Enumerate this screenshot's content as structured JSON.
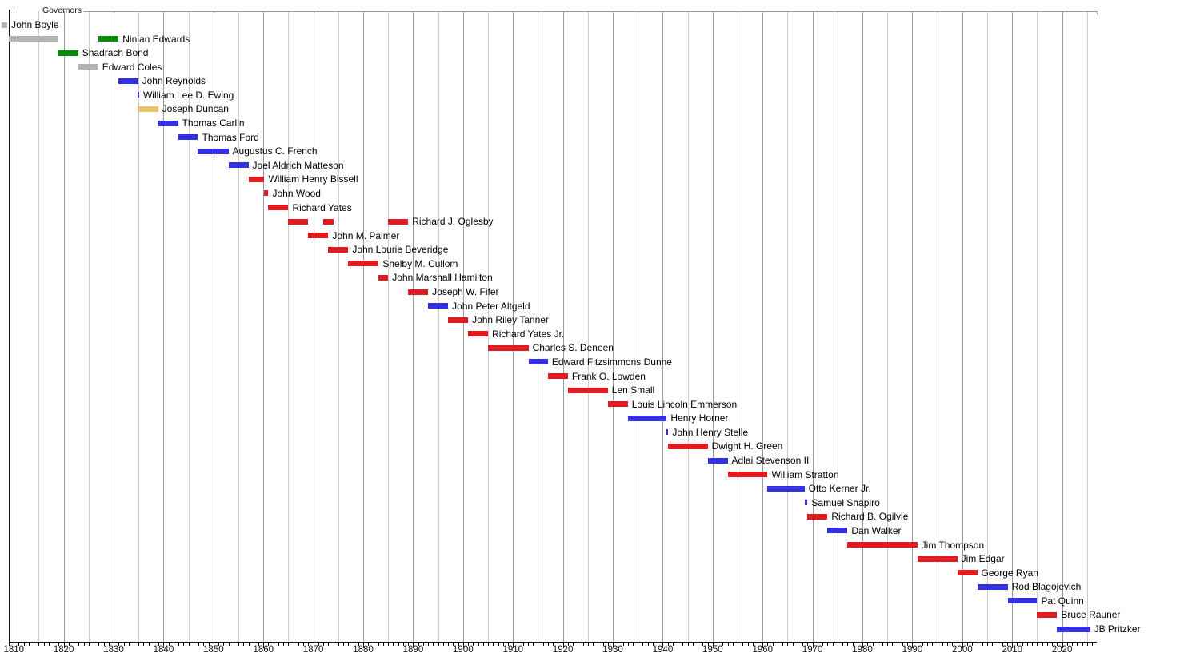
{
  "title": "Governors",
  "palette": {
    "red": "#e11b22",
    "blue": "#3430e2",
    "green": "#0a8a0a",
    "gray": "#b4b4b4",
    "gold": "#e9c567"
  },
  "style_colors": {
    "grid_major": "#9a9a9a",
    "grid_minor": "#cecece",
    "axis_color": "#111111",
    "background": "#ffffff",
    "label_color": "#000000"
  },
  "x_axis": {
    "tick_labels": [
      "1810",
      "1820",
      "1830",
      "1840",
      "1850",
      "1860",
      "1870",
      "1880",
      "1890",
      "1900",
      "1910",
      "1920",
      "1930",
      "1940",
      "1950",
      "1960",
      "1970",
      "1980",
      "1990",
      "2000",
      "2010",
      "2020"
    ]
  },
  "chart_data": {
    "type": "bar",
    "variant": "horizontal-timeline-gantt",
    "title": "Governors",
    "xlabel": "",
    "ylabel": "",
    "xlim": [
      1809,
      2027
    ],
    "grid": "on",
    "legend_position": "none",
    "series": [
      {
        "name": "John Boyle",
        "segments": [
          {
            "start": 1807.6,
            "end": 1808.7,
            "color": "gray"
          }
        ]
      },
      {
        "name": "Ninian Edwards",
        "segments": [
          {
            "start": 1809.0,
            "end": 1818.8,
            "color": "gray"
          },
          {
            "start": 1826.9,
            "end": 1831.0,
            "color": "green"
          }
        ]
      },
      {
        "name": "Shadrach Bond",
        "segments": [
          {
            "start": 1818.8,
            "end": 1822.9,
            "color": "green"
          }
        ]
      },
      {
        "name": "Edward Coles",
        "segments": [
          {
            "start": 1822.9,
            "end": 1826.9,
            "color": "gray"
          }
        ]
      },
      {
        "name": "John Reynolds",
        "segments": [
          {
            "start": 1830.9,
            "end": 1834.9,
            "color": "blue"
          }
        ]
      },
      {
        "name": "William Lee D. Ewing",
        "segments": [
          {
            "start": 1834.8,
            "end": 1835.0,
            "color": "blue"
          }
        ]
      },
      {
        "name": "Joseph Duncan",
        "segments": [
          {
            "start": 1834.9,
            "end": 1838.9,
            "color": "gold"
          }
        ]
      },
      {
        "name": "Thomas Carlin",
        "segments": [
          {
            "start": 1838.9,
            "end": 1842.9,
            "color": "blue"
          }
        ]
      },
      {
        "name": "Thomas Ford",
        "segments": [
          {
            "start": 1842.9,
            "end": 1846.9,
            "color": "blue"
          }
        ]
      },
      {
        "name": "Augustus C. French",
        "segments": [
          {
            "start": 1846.9,
            "end": 1853.0,
            "color": "blue"
          }
        ]
      },
      {
        "name": "Joel Aldrich Matteson",
        "segments": [
          {
            "start": 1853.0,
            "end": 1857.0,
            "color": "blue"
          }
        ]
      },
      {
        "name": "William Henry Bissell",
        "segments": [
          {
            "start": 1857.0,
            "end": 1860.2,
            "color": "red"
          }
        ]
      },
      {
        "name": "John Wood",
        "segments": [
          {
            "start": 1860.2,
            "end": 1861.0,
            "color": "red"
          }
        ]
      },
      {
        "name": "Richard Yates",
        "segments": [
          {
            "start": 1861.0,
            "end": 1865.0,
            "color": "red"
          }
        ]
      },
      {
        "name": "Richard J. Oglesby",
        "segments": [
          {
            "start": 1865.0,
            "end": 1869.0,
            "color": "red"
          },
          {
            "start": 1872.0,
            "end": 1874.0,
            "color": "red"
          },
          {
            "start": 1885.0,
            "end": 1889.0,
            "color": "red"
          }
        ]
      },
      {
        "name": "John M. Palmer",
        "segments": [
          {
            "start": 1869.0,
            "end": 1873.0,
            "color": "red"
          }
        ]
      },
      {
        "name": "John Lourie Beveridge",
        "segments": [
          {
            "start": 1873.0,
            "end": 1877.0,
            "color": "red"
          }
        ]
      },
      {
        "name": "Shelby M. Cullom",
        "segments": [
          {
            "start": 1877.0,
            "end": 1883.1,
            "color": "red"
          }
        ]
      },
      {
        "name": "John Marshall Hamilton",
        "segments": [
          {
            "start": 1883.1,
            "end": 1885.0,
            "color": "red"
          }
        ]
      },
      {
        "name": "Joseph W. Fifer",
        "segments": [
          {
            "start": 1889.0,
            "end": 1893.0,
            "color": "red"
          }
        ]
      },
      {
        "name": "John Peter Altgeld",
        "segments": [
          {
            "start": 1893.0,
            "end": 1897.0,
            "color": "blue"
          }
        ]
      },
      {
        "name": "John Riley Tanner",
        "segments": [
          {
            "start": 1897.0,
            "end": 1901.0,
            "color": "red"
          }
        ]
      },
      {
        "name": "Richard Yates Jr.",
        "segments": [
          {
            "start": 1901.0,
            "end": 1905.0,
            "color": "red"
          }
        ]
      },
      {
        "name": "Charles S. Deneen",
        "segments": [
          {
            "start": 1905.0,
            "end": 1913.1,
            "color": "red"
          }
        ]
      },
      {
        "name": "Edward Fitzsimmons Dunne",
        "segments": [
          {
            "start": 1913.1,
            "end": 1917.0,
            "color": "blue"
          }
        ]
      },
      {
        "name": "Frank O. Lowden",
        "segments": [
          {
            "start": 1917.0,
            "end": 1921.0,
            "color": "red"
          }
        ]
      },
      {
        "name": "Len Small",
        "segments": [
          {
            "start": 1921.0,
            "end": 1929.0,
            "color": "red"
          }
        ]
      },
      {
        "name": "Louis Lincoln Emmerson",
        "segments": [
          {
            "start": 1929.0,
            "end": 1933.0,
            "color": "red"
          }
        ]
      },
      {
        "name": "Henry Horner",
        "segments": [
          {
            "start": 1933.0,
            "end": 1940.8,
            "color": "blue"
          }
        ]
      },
      {
        "name": "John Henry Stelle",
        "segments": [
          {
            "start": 1940.8,
            "end": 1941.0,
            "color": "blue"
          }
        ]
      },
      {
        "name": "Dwight H. Green",
        "segments": [
          {
            "start": 1941.0,
            "end": 1949.0,
            "color": "red"
          }
        ]
      },
      {
        "name": "Adlai Stevenson II",
        "segments": [
          {
            "start": 1949.0,
            "end": 1953.0,
            "color": "blue"
          }
        ]
      },
      {
        "name": "William Stratton",
        "segments": [
          {
            "start": 1953.0,
            "end": 1961.0,
            "color": "red"
          }
        ]
      },
      {
        "name": "Otto Kerner Jr.",
        "segments": [
          {
            "start": 1961.0,
            "end": 1968.4,
            "color": "blue"
          }
        ]
      },
      {
        "name": "Samuel Shapiro",
        "segments": [
          {
            "start": 1968.4,
            "end": 1969.0,
            "color": "blue"
          }
        ]
      },
      {
        "name": "Richard B. Ogilvie",
        "segments": [
          {
            "start": 1969.0,
            "end": 1973.0,
            "color": "red"
          }
        ]
      },
      {
        "name": "Dan Walker",
        "segments": [
          {
            "start": 1973.0,
            "end": 1977.0,
            "color": "blue"
          }
        ]
      },
      {
        "name": "Jim Thompson",
        "segments": [
          {
            "start": 1977.0,
            "end": 1991.0,
            "color": "red"
          }
        ]
      },
      {
        "name": "Jim Edgar",
        "segments": [
          {
            "start": 1991.0,
            "end": 1999.0,
            "color": "red"
          }
        ]
      },
      {
        "name": "George Ryan",
        "segments": [
          {
            "start": 1999.0,
            "end": 2003.0,
            "color": "red"
          }
        ]
      },
      {
        "name": "Rod Blagojevich",
        "segments": [
          {
            "start": 2003.0,
            "end": 2009.1,
            "color": "blue"
          }
        ]
      },
      {
        "name": "Pat Quinn",
        "segments": [
          {
            "start": 2009.1,
            "end": 2015.0,
            "color": "blue"
          }
        ]
      },
      {
        "name": "Bruce Rauner",
        "segments": [
          {
            "start": 2015.0,
            "end": 2019.0,
            "color": "red"
          }
        ]
      },
      {
        "name": "JB Pritzker",
        "segments": [
          {
            "start": 2019.0,
            "end": 2025.6,
            "color": "blue"
          }
        ]
      }
    ]
  }
}
